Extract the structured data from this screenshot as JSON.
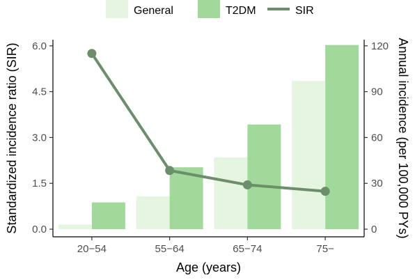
{
  "chart_data": {
    "type": "bar",
    "categories": [
      "20−54",
      "55−64",
      "65−74",
      "75−"
    ],
    "series": [
      {
        "name": "General",
        "kind": "bar",
        "axis": "right",
        "values": [
          3,
          21.5,
          47,
          97
        ],
        "color": "#e5f5e0"
      },
      {
        "name": "T2DM",
        "kind": "bar",
        "axis": "right",
        "values": [
          17.5,
          40.5,
          68.5,
          120.5
        ],
        "color": "#a1d99b"
      },
      {
        "name": "SIR",
        "kind": "line",
        "axis": "left",
        "values": [
          5.75,
          1.92,
          1.45,
          1.24
        ],
        "color": "#6b8e6b"
      }
    ],
    "xlabel": "Age (years)",
    "ylabel": "Standardized incidence ratio (SIR)",
    "y2label": "Annual incidence (per 100,000 PYs)",
    "ylim": [
      -0.25,
      6.2
    ],
    "y2lim": [
      -5,
      124
    ],
    "yticks": [
      0.0,
      1.5,
      3.0,
      4.5,
      6.0
    ],
    "ytick_labels": [
      "0.0",
      "1.5",
      "3.0",
      "4.5",
      "6.0"
    ],
    "y2ticks": [
      0,
      30,
      60,
      90,
      120
    ],
    "y2tick_labels": [
      "0",
      "30",
      "60",
      "90",
      "120"
    ],
    "legend_position": "top",
    "grid": false
  }
}
